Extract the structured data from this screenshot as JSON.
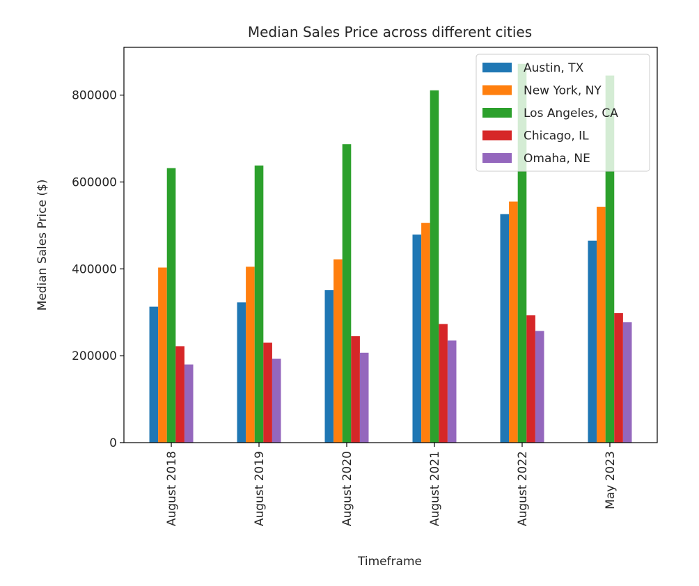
{
  "chart_data": {
    "type": "bar",
    "title": "Median Sales Price across different cities",
    "xlabel": "Timeframe",
    "ylabel": "Median Sales Price ($)",
    "categories": [
      "August 2018",
      "August 2019",
      "August 2020",
      "August 2021",
      "August 2022",
      "May 2023"
    ],
    "ylim": [
      0,
      910000
    ],
    "yticks": [
      0,
      200000,
      400000,
      600000,
      800000
    ],
    "ytick_labels": [
      "0",
      "200000",
      "400000",
      "600000",
      "800000"
    ],
    "legend_position": "top-right",
    "grid": false,
    "series": [
      {
        "name": "Austin, TX",
        "color": "#1f77b4",
        "values": [
          313000,
          323000,
          351000,
          479000,
          526000,
          465000
        ]
      },
      {
        "name": "New York, NY",
        "color": "#ff7f0e",
        "values": [
          403000,
          405000,
          422000,
          506000,
          555000,
          543000
        ]
      },
      {
        "name": "Los Angeles, CA",
        "color": "#2ca02c",
        "values": [
          632000,
          638000,
          687000,
          811000,
          872000,
          845000
        ]
      },
      {
        "name": "Chicago, IL",
        "color": "#d62728",
        "values": [
          222000,
          230000,
          245000,
          273000,
          293000,
          298000
        ]
      },
      {
        "name": "Omaha, NE",
        "color": "#9467bd",
        "values": [
          180000,
          193000,
          207000,
          235000,
          257000,
          277000
        ]
      }
    ]
  }
}
